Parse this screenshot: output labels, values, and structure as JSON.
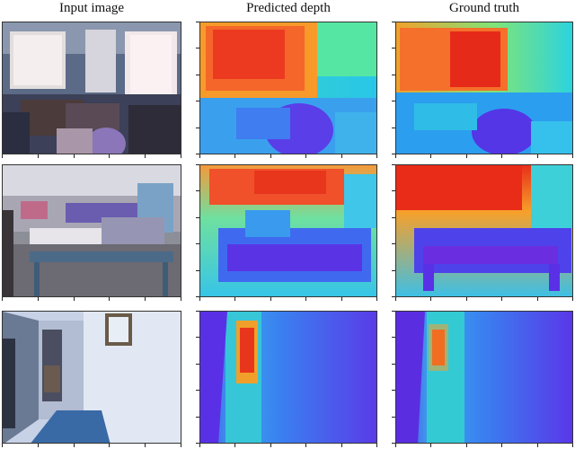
{
  "figure": {
    "columns": [
      "Input image",
      "Predicted depth",
      "Ground truth"
    ],
    "rows": [
      {
        "scene": "cluttered office room with windows"
      },
      {
        "scene": "retail store interior with display tables"
      },
      {
        "scene": "narrow hallway with open doorway"
      }
    ]
  },
  "colors": {
    "depth_near": "#5a2df0",
    "depth_mid": "#2fd3e8",
    "depth_far": "#e83212"
  }
}
